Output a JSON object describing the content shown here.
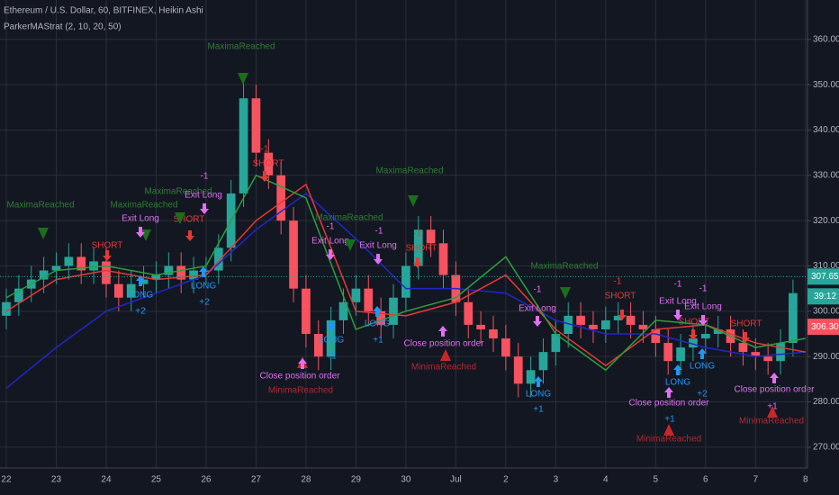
{
  "chart_data": {
    "type": "candlestick",
    "title": "Ethereum / U.S. Dollar, 60, BITFINEX, Heikin Ashi",
    "subtitle": "ParkerMAStrat (2, 10, 20, 50)",
    "up_color": "#26a69a",
    "down_color": "#f7525f",
    "grid": true,
    "xlim": [
      -0.126,
      16.04
    ],
    "ylim": [
      265.4,
      368.7
    ],
    "xticks": [
      {
        "value": 0,
        "label": "22"
      },
      {
        "value": 1,
        "label": "23"
      },
      {
        "value": 2,
        "label": "24"
      },
      {
        "value": 3,
        "label": "25"
      },
      {
        "value": 4,
        "label": "26"
      },
      {
        "value": 5,
        "label": "27"
      },
      {
        "value": 6,
        "label": "28"
      },
      {
        "value": 7,
        "label": "29"
      },
      {
        "value": 8,
        "label": "30"
      },
      {
        "value": 9,
        "label": "Jul"
      },
      {
        "value": 10,
        "label": "2"
      },
      {
        "value": 11,
        "label": "3"
      },
      {
        "value": 12,
        "label": "4"
      },
      {
        "value": 13,
        "label": "5"
      },
      {
        "value": 14,
        "label": "6"
      },
      {
        "value": 15,
        "label": "7"
      },
      {
        "value": 16,
        "label": "8"
      }
    ],
    "yticks": [
      {
        "value": 270,
        "label": "270.00"
      },
      {
        "value": 280,
        "label": "280.00"
      },
      {
        "value": 290,
        "label": "290.00"
      },
      {
        "value": 300,
        "label": "300.00"
      },
      {
        "value": 310,
        "label": "310.00"
      },
      {
        "value": 320,
        "label": "320.00"
      },
      {
        "value": 330,
        "label": "330.00"
      },
      {
        "value": 340,
        "label": "340.00"
      },
      {
        "value": 350,
        "label": "350.00"
      },
      {
        "value": 360,
        "label": "360.00"
      }
    ],
    "x": [
      0,
      0.25,
      0.5,
      0.75,
      1,
      1.25,
      1.5,
      1.75,
      2,
      2.25,
      2.5,
      2.75,
      3,
      3.25,
      3.5,
      3.75,
      4,
      4.25,
      4.5,
      4.75,
      5,
      5.25,
      5.5,
      5.75,
      6,
      6.25,
      6.5,
      6.75,
      7,
      7.25,
      7.5,
      7.75,
      8,
      8.25,
      8.5,
      8.75,
      9,
      9.25,
      9.5,
      9.75,
      10,
      10.25,
      10.5,
      10.75,
      11,
      11.25,
      11.5,
      11.75,
      12,
      12.25,
      12.5,
      12.75,
      13,
      13.25,
      13.5,
      13.75,
      14,
      14.25,
      14.5,
      14.75,
      15,
      15.25,
      15.5,
      15.75
    ],
    "open": [
      299,
      302,
      305,
      307,
      309,
      310,
      312,
      309,
      311,
      306,
      303,
      306,
      307,
      308,
      310,
      307,
      309,
      309,
      314,
      326,
      347,
      335,
      330,
      320,
      305,
      295,
      290,
      298,
      302,
      305,
      300,
      297,
      303,
      310,
      318,
      315,
      308,
      302,
      297,
      296,
      294,
      290,
      284,
      287,
      291,
      295,
      299,
      297,
      296,
      298,
      299,
      297,
      296,
      293,
      289,
      292,
      294,
      295,
      296,
      293,
      291,
      290,
      289,
      293
    ],
    "high": [
      305,
      308,
      310,
      312,
      313,
      315,
      315,
      314,
      314,
      309,
      309,
      310,
      311,
      313,
      313,
      312,
      312,
      317,
      329,
      352,
      350,
      338,
      333,
      323,
      308,
      298,
      301,
      305,
      308,
      308,
      303,
      306,
      313,
      321,
      321,
      318,
      311,
      305,
      300,
      299,
      297,
      293,
      290,
      294,
      298,
      302,
      302,
      300,
      301,
      302,
      302,
      300,
      299,
      296,
      295,
      297,
      297,
      299,
      299,
      296,
      294,
      293,
      296,
      307
    ],
    "low": [
      296,
      299,
      302,
      304,
      306,
      307,
      306,
      306,
      303,
      300,
      300,
      303,
      304,
      305,
      304,
      304,
      306,
      306,
      311,
      323,
      332,
      327,
      317,
      302,
      292,
      287,
      287,
      295,
      299,
      297,
      294,
      294,
      300,
      307,
      312,
      305,
      299,
      294,
      293,
      291,
      287,
      281,
      281,
      284,
      288,
      292,
      294,
      293,
      293,
      295,
      294,
      293,
      290,
      286,
      286,
      289,
      291,
      292,
      290,
      288,
      287,
      286,
      286,
      290
    ],
    "close": [
      302,
      305,
      307,
      309,
      310,
      312,
      309,
      311,
      306,
      303,
      306,
      307,
      308,
      310,
      307,
      309,
      309,
      314,
      326,
      347,
      335,
      330,
      320,
      305,
      295,
      290,
      298,
      302,
      305,
      300,
      297,
      303,
      310,
      318,
      315,
      308,
      302,
      297,
      296,
      294,
      290,
      284,
      287,
      291,
      295,
      299,
      297,
      296,
      298,
      299,
      297,
      296,
      293,
      289,
      292,
      294,
      295,
      296,
      293,
      291,
      290,
      289,
      293,
      304
    ],
    "ma_x": [
      0,
      1,
      2,
      3,
      4,
      5,
      6,
      7,
      8,
      9,
      10,
      11,
      12,
      13,
      14,
      15,
      16
    ],
    "lines": [
      {
        "color": "#2027c9",
        "values": [
          283,
          292,
          300,
          304,
          308,
          318,
          326,
          316,
          305,
          305,
          304,
          298,
          295,
          295,
          292,
          290,
          291
        ]
      },
      {
        "color": "#e53935",
        "values": [
          300,
          307,
          309,
          307,
          308,
          320,
          328,
          300,
          299,
          302,
          308,
          296,
          288,
          296,
          297,
          293,
          291
        ]
      },
      {
        "color": "#2e9e3e",
        "values": [
          303,
          309,
          310,
          308,
          310,
          330,
          325,
          296,
          300,
          303,
          312,
          295,
          287,
          298,
          297,
          292,
          294
        ]
      }
    ],
    "last_price": {
      "value": 307.65,
      "label": "307.65",
      "color": "#26a69a"
    },
    "countdown": {
      "text": "39:12",
      "color": "#26a69a"
    },
    "prev_close": {
      "value": 306.3,
      "label": "306.30",
      "color": "#f7525f"
    },
    "annotations": [
      {
        "text": "MaximaReached",
        "color": "#2e7d32"
      },
      {
        "text": "MaximaReached",
        "color": "#2e7d32"
      },
      {
        "text": "MaximaReached",
        "color": "#2e7d32"
      },
      {
        "text": "MaximaReached",
        "color": "#2e7d32"
      },
      {
        "text": "MaximaReached",
        "color": "#2e7d32"
      },
      {
        "text": "MaximaReached",
        "color": "#2e7d32"
      },
      {
        "text": "MaximaReached",
        "color": "#2e7d32"
      },
      {
        "text": "SHORT",
        "color": "#e53935"
      },
      {
        "text": "SHORT",
        "color": "#e53935"
      },
      {
        "text": "SHORT",
        "color": "#e53935"
      },
      {
        "text": "SHORT",
        "color": "#e53935"
      },
      {
        "text": "SHORT",
        "color": "#e53935"
      },
      {
        "text": "SHORT",
        "color": "#e53935"
      },
      {
        "text": "SHORT",
        "color": "#e53935"
      },
      {
        "text": "-1",
        "color": "#e53935"
      },
      {
        "text": "-1",
        "color": "#e53935"
      },
      {
        "text": "-1",
        "color": "#e53935"
      },
      {
        "text": "Exit Long",
        "color": "#e070f0"
      },
      {
        "text": "Exit Long",
        "color": "#e070f0"
      },
      {
        "text": "Exit Long",
        "color": "#e070f0"
      },
      {
        "text": "Exit Long",
        "color": "#e070f0"
      },
      {
        "text": "Exit Long",
        "color": "#e070f0"
      },
      {
        "text": "Exit Long",
        "color": "#e070f0"
      },
      {
        "text": "Exit Long",
        "color": "#e070f0"
      },
      {
        "text": "-1",
        "color": "#e070f0"
      },
      {
        "text": "-1",
        "color": "#e070f0"
      },
      {
        "text": "-1",
        "color": "#e070f0"
      },
      {
        "text": "-1",
        "color": "#e070f0"
      },
      {
        "text": "-1",
        "color": "#e070f0"
      },
      {
        "text": "-1",
        "color": "#e070f0"
      },
      {
        "text": "LONG",
        "color": "#2196f3"
      },
      {
        "text": "LONG",
        "color": "#2196f3"
      },
      {
        "text": "LONG",
        "color": "#2196f3"
      },
      {
        "text": "LONG",
        "color": "#2196f3"
      },
      {
        "text": "LONG",
        "color": "#2196f3"
      },
      {
        "text": "LONG",
        "color": "#2196f3"
      },
      {
        "text": "LONG",
        "color": "#2196f3"
      },
      {
        "text": "+2",
        "color": "#2196f3"
      },
      {
        "text": "+2",
        "color": "#2196f3"
      },
      {
        "text": "+2",
        "color": "#2196f3"
      },
      {
        "text": "+1",
        "color": "#2196f3"
      },
      {
        "text": "+1",
        "color": "#2196f3"
      },
      {
        "text": "+1",
        "color": "#2196f3"
      },
      {
        "text": "+1",
        "color": "#2196f3"
      },
      {
        "text": "Close position order",
        "color": "#e070f0"
      },
      {
        "text": "Close position order",
        "color": "#e070f0"
      },
      {
        "text": "Close position order",
        "color": "#e070f0"
      },
      {
        "text": "Close position order",
        "color": "#e070f0"
      },
      {
        "text": "MinimaReached",
        "color": "#b3282d"
      },
      {
        "text": "MinimaReached",
        "color": "#b3282d"
      },
      {
        "text": "MinimaReached",
        "color": "#b3282d"
      },
      {
        "text": "MinimaReached",
        "color": "#b3282d"
      },
      {
        "text": "+1",
        "color": "#e070f0"
      }
    ]
  }
}
